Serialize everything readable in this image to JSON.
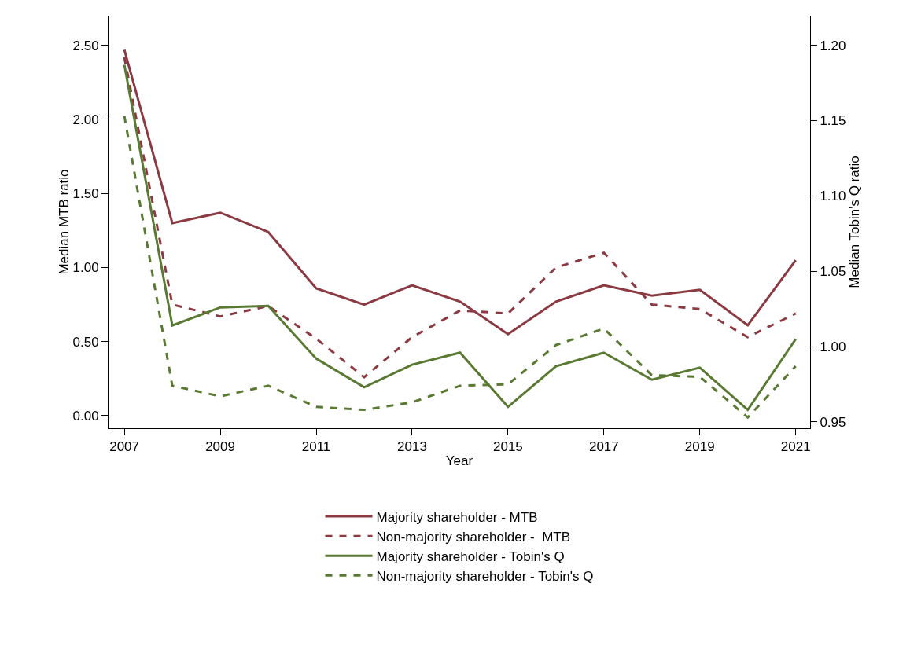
{
  "chart_data": {
    "type": "line",
    "xlabel": "Year",
    "ylabel": "Median MTB ratio",
    "y2label": "Median Tobin's Q ratio",
    "x": [
      2007,
      2008,
      2009,
      2010,
      2011,
      2012,
      2013,
      2014,
      2015,
      2016,
      2017,
      2018,
      2019,
      2020,
      2021
    ],
    "series": [
      {
        "name": "Majority shareholder - MTB",
        "color": "#8b3a42",
        "line_style": "solid",
        "values": [
          2.47,
          1.3,
          1.37,
          1.24,
          0.86,
          0.75,
          0.88,
          0.77,
          0.55,
          0.77,
          0.88,
          0.81,
          0.85,
          0.61,
          1.05
        ]
      },
      {
        "name": "Non-majority shareholder -  MTB",
        "color": "#8b3a42",
        "line_style": "dashed",
        "values": [
          2.42,
          0.75,
          0.67,
          0.74,
          0.52,
          0.26,
          0.53,
          0.71,
          0.69,
          1.0,
          1.1,
          0.75,
          0.72,
          0.53,
          0.69
        ]
      },
      {
        "name": "Majority shareholder - Tobin's Q",
        "color": "#5a7a34",
        "line_style": "solid",
        "axis": "y2",
        "values": [
          1.187,
          1.014,
          1.026,
          1.027,
          0.992,
          0.973,
          0.988,
          0.996,
          0.96,
          0.987,
          0.996,
          0.978,
          0.986,
          0.958,
          1.005
        ]
      },
      {
        "name": "Non-majority shareholder - Tobin's Q",
        "color": "#5a7a34",
        "line_style": "dashed",
        "axis": "y2",
        "values": [
          1.153,
          0.974,
          0.967,
          0.974,
          0.96,
          0.958,
          0.963,
          0.974,
          0.975,
          1.001,
          1.012,
          0.981,
          0.98,
          0.953,
          0.987
        ]
      }
    ],
    "xlim": [
      2006.67,
      2021.3
    ],
    "xticks": [
      2007,
      2009,
      2011,
      2013,
      2015,
      2017,
      2019,
      2021
    ],
    "ylim": [
      -0.085,
      2.7
    ],
    "yticks": [
      {
        "value": 0,
        "label": "0.00"
      },
      {
        "value": 0.5,
        "label": "0.50"
      },
      {
        "value": 1,
        "label": "1.00"
      },
      {
        "value": 1.5,
        "label": "1.50"
      },
      {
        "value": 2,
        "label": "2.00"
      },
      {
        "value": 2.5,
        "label": "2.50"
      }
    ],
    "y2lim": [
      0.9458,
      1.2196
    ],
    "y2ticks": [
      {
        "value": 0.95,
        "label": "0.95"
      },
      {
        "value": 1,
        "label": "1.00"
      },
      {
        "value": 1.05,
        "label": "1.05"
      },
      {
        "value": 1.1,
        "label": "1.10"
      },
      {
        "value": 1.15,
        "label": "1.15"
      },
      {
        "value": 1.2,
        "label": "1.20"
      }
    ],
    "grid": false,
    "legend": "bottom",
    "marker": "none"
  }
}
